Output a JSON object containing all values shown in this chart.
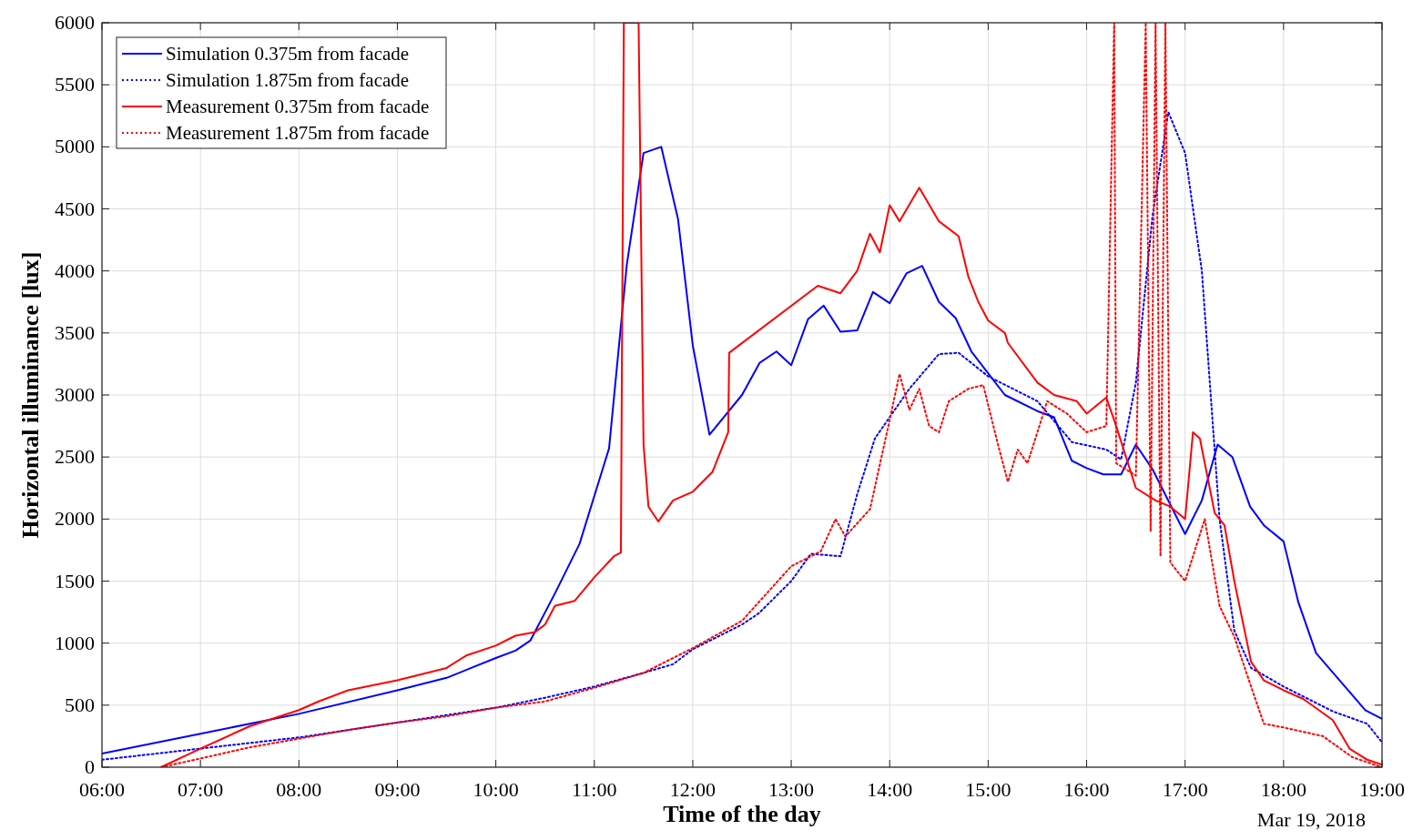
{
  "chart_data": {
    "type": "line",
    "xlabel": "Time of the day",
    "ylabel": "Horizontal illuminance [lux]",
    "xlim": [
      6,
      19
    ],
    "ylim": [
      0,
      6000
    ],
    "xticks": [
      {
        "value": 6,
        "label": "06:00"
      },
      {
        "value": 7,
        "label": "07:00"
      },
      {
        "value": 8,
        "label": "08:00"
      },
      {
        "value": 9,
        "label": "09:00"
      },
      {
        "value": 10,
        "label": "10:00"
      },
      {
        "value": 11,
        "label": "11:00"
      },
      {
        "value": 12,
        "label": "12:00"
      },
      {
        "value": 13,
        "label": "13:00"
      },
      {
        "value": 14,
        "label": "14:00"
      },
      {
        "value": 15,
        "label": "15:00"
      },
      {
        "value": 16,
        "label": "16:00"
      },
      {
        "value": 17,
        "label": "17:00"
      },
      {
        "value": 18,
        "label": "18:00"
      },
      {
        "value": 19,
        "label": "19:00"
      }
    ],
    "yticks": [
      0,
      500,
      1000,
      1500,
      2000,
      2500,
      3000,
      3500,
      4000,
      4500,
      5000,
      5500,
      6000
    ],
    "grid": true,
    "legend": "top left",
    "marker": "none",
    "annotations": [
      "Mar 19, 2018"
    ],
    "series": [
      {
        "name": "Simulation 0.375m from facade",
        "color": "#0000ff",
        "line_style": "solid",
        "x": [
          6,
          7,
          8,
          9,
          9.5,
          10,
          10.2,
          10.35,
          10.6,
          10.85,
          11.15,
          11.33,
          11.5,
          11.68,
          11.85,
          12,
          12.17,
          12.5,
          12.68,
          12.85,
          13,
          13.17,
          13.33,
          13.5,
          13.67,
          13.83,
          14,
          14.17,
          14.33,
          14.5,
          14.67,
          14.83,
          15.17,
          15.5,
          15.67,
          15.85,
          16,
          16.17,
          16.35,
          16.5,
          16.67,
          17,
          17.17,
          17.33,
          17.48,
          17.66,
          17.8,
          18,
          18.15,
          18.33,
          18.83,
          19
        ],
        "values": [
          110,
          270,
          430,
          620,
          720,
          880,
          940,
          1020,
          1400,
          1800,
          2570,
          4050,
          4950,
          5000,
          4420,
          3400,
          2680,
          3000,
          3260,
          3350,
          3240,
          3610,
          3720,
          3510,
          3520,
          3830,
          3740,
          3980,
          4040,
          3750,
          3620,
          3350,
          3000,
          2870,
          2820,
          2470,
          2410,
          2360,
          2360,
          2600,
          2400,
          1880,
          2150,
          2600,
          2500,
          2100,
          1950,
          1820,
          1330,
          920,
          460,
          390
        ]
      },
      {
        "name": "Simulation 1.875m from facade",
        "color": "#0000ff",
        "line_style": "dotted",
        "x": [
          6,
          7,
          8,
          9,
          10,
          10.5,
          11,
          11.5,
          11.8,
          12,
          12.5,
          12.67,
          13,
          13.2,
          13.5,
          13.67,
          13.85,
          14.2,
          14.5,
          14.7,
          15,
          15.5,
          15.85,
          16.2,
          16.35,
          16.5,
          16.67,
          16.83,
          17,
          17.17,
          17.35,
          17.5,
          17.67,
          18,
          18.5,
          18.85,
          19
        ],
        "values": [
          60,
          150,
          240,
          360,
          480,
          560,
          650,
          760,
          830,
          950,
          1150,
          1240,
          1500,
          1720,
          1700,
          2200,
          2650,
          3050,
          3330,
          3340,
          3150,
          2950,
          2620,
          2560,
          2480,
          3100,
          4450,
          5280,
          4950,
          4000,
          2000,
          1100,
          800,
          650,
          450,
          350,
          200
        ]
      },
      {
        "name": "Measurement 0.375m from facade",
        "color": "#ff0000",
        "line_style": "solid",
        "x": [
          6.6,
          7,
          7.5,
          8,
          8.2,
          8.5,
          9,
          9.5,
          9.7,
          10,
          10.2,
          10.4,
          10.5,
          10.6,
          10.8,
          11,
          11.2,
          11.27,
          11.3,
          11.45,
          11.5,
          11.55,
          11.65,
          11.8,
          12,
          12.2,
          12.36,
          12.37,
          13.27,
          13.5,
          13.67,
          13.8,
          13.9,
          14,
          14.1,
          14.3,
          14.5,
          14.7,
          14.8,
          14.9,
          15,
          15.17,
          15.2,
          15.5,
          15.67,
          15.9,
          16,
          16.2,
          16.3,
          16.5,
          16.7,
          16.85,
          17,
          17.08,
          17.15,
          17.3,
          17.4,
          17.5,
          17.67,
          17.8,
          18,
          18.2,
          18.5,
          18.67,
          18.85,
          19
        ],
        "values": [
          0,
          150,
          330,
          460,
          530,
          620,
          700,
          800,
          900,
          980,
          1060,
          1090,
          1150,
          1300,
          1340,
          1530,
          1700,
          1730,
          6000,
          6000,
          2600,
          2100,
          1980,
          2150,
          2220,
          2380,
          2700,
          3340,
          3880,
          3820,
          4000,
          4300,
          4150,
          4530,
          4400,
          4670,
          4400,
          4280,
          3950,
          3750,
          3600,
          3500,
          3420,
          3100,
          3000,
          2950,
          2850,
          2980,
          2750,
          2250,
          2150,
          2100,
          2000,
          2700,
          2650,
          2050,
          1950,
          1500,
          850,
          700,
          620,
          550,
          380,
          150,
          60,
          20
        ]
      },
      {
        "name": "Measurement 1.875m from facade",
        "color": "#ff0000",
        "line_style": "dotted",
        "x": [
          6.6,
          7,
          7.5,
          8,
          8.5,
          9,
          9.5,
          10,
          10.5,
          11,
          11.5,
          12,
          12.5,
          13,
          13.3,
          13.45,
          13.55,
          13.8,
          14,
          14.1,
          14.2,
          14.3,
          14.4,
          14.5,
          14.6,
          14.8,
          14.95,
          15.1,
          15.2,
          15.3,
          15.4,
          15.6,
          15.8,
          16,
          16.2,
          16.28,
          16.3,
          16.5,
          16.6,
          16.65,
          16.7,
          16.75,
          16.8,
          16.85,
          17,
          17.2,
          17.35,
          17.5,
          17.67,
          17.8,
          18,
          18.4,
          18.7,
          19
        ],
        "values": [
          0,
          70,
          160,
          230,
          300,
          360,
          410,
          480,
          530,
          640,
          760,
          960,
          1180,
          1620,
          1740,
          2000,
          1860,
          2080,
          2800,
          3170,
          2880,
          3050,
          2750,
          2700,
          2950,
          3050,
          3080,
          2600,
          2300,
          2560,
          2450,
          2950,
          2850,
          2700,
          2750,
          6000,
          2450,
          2350,
          6000,
          1900,
          6000,
          1700,
          6000,
          1650,
          1500,
          2000,
          1300,
          1050,
          650,
          350,
          320,
          250,
          80,
          0
        ]
      }
    ]
  }
}
